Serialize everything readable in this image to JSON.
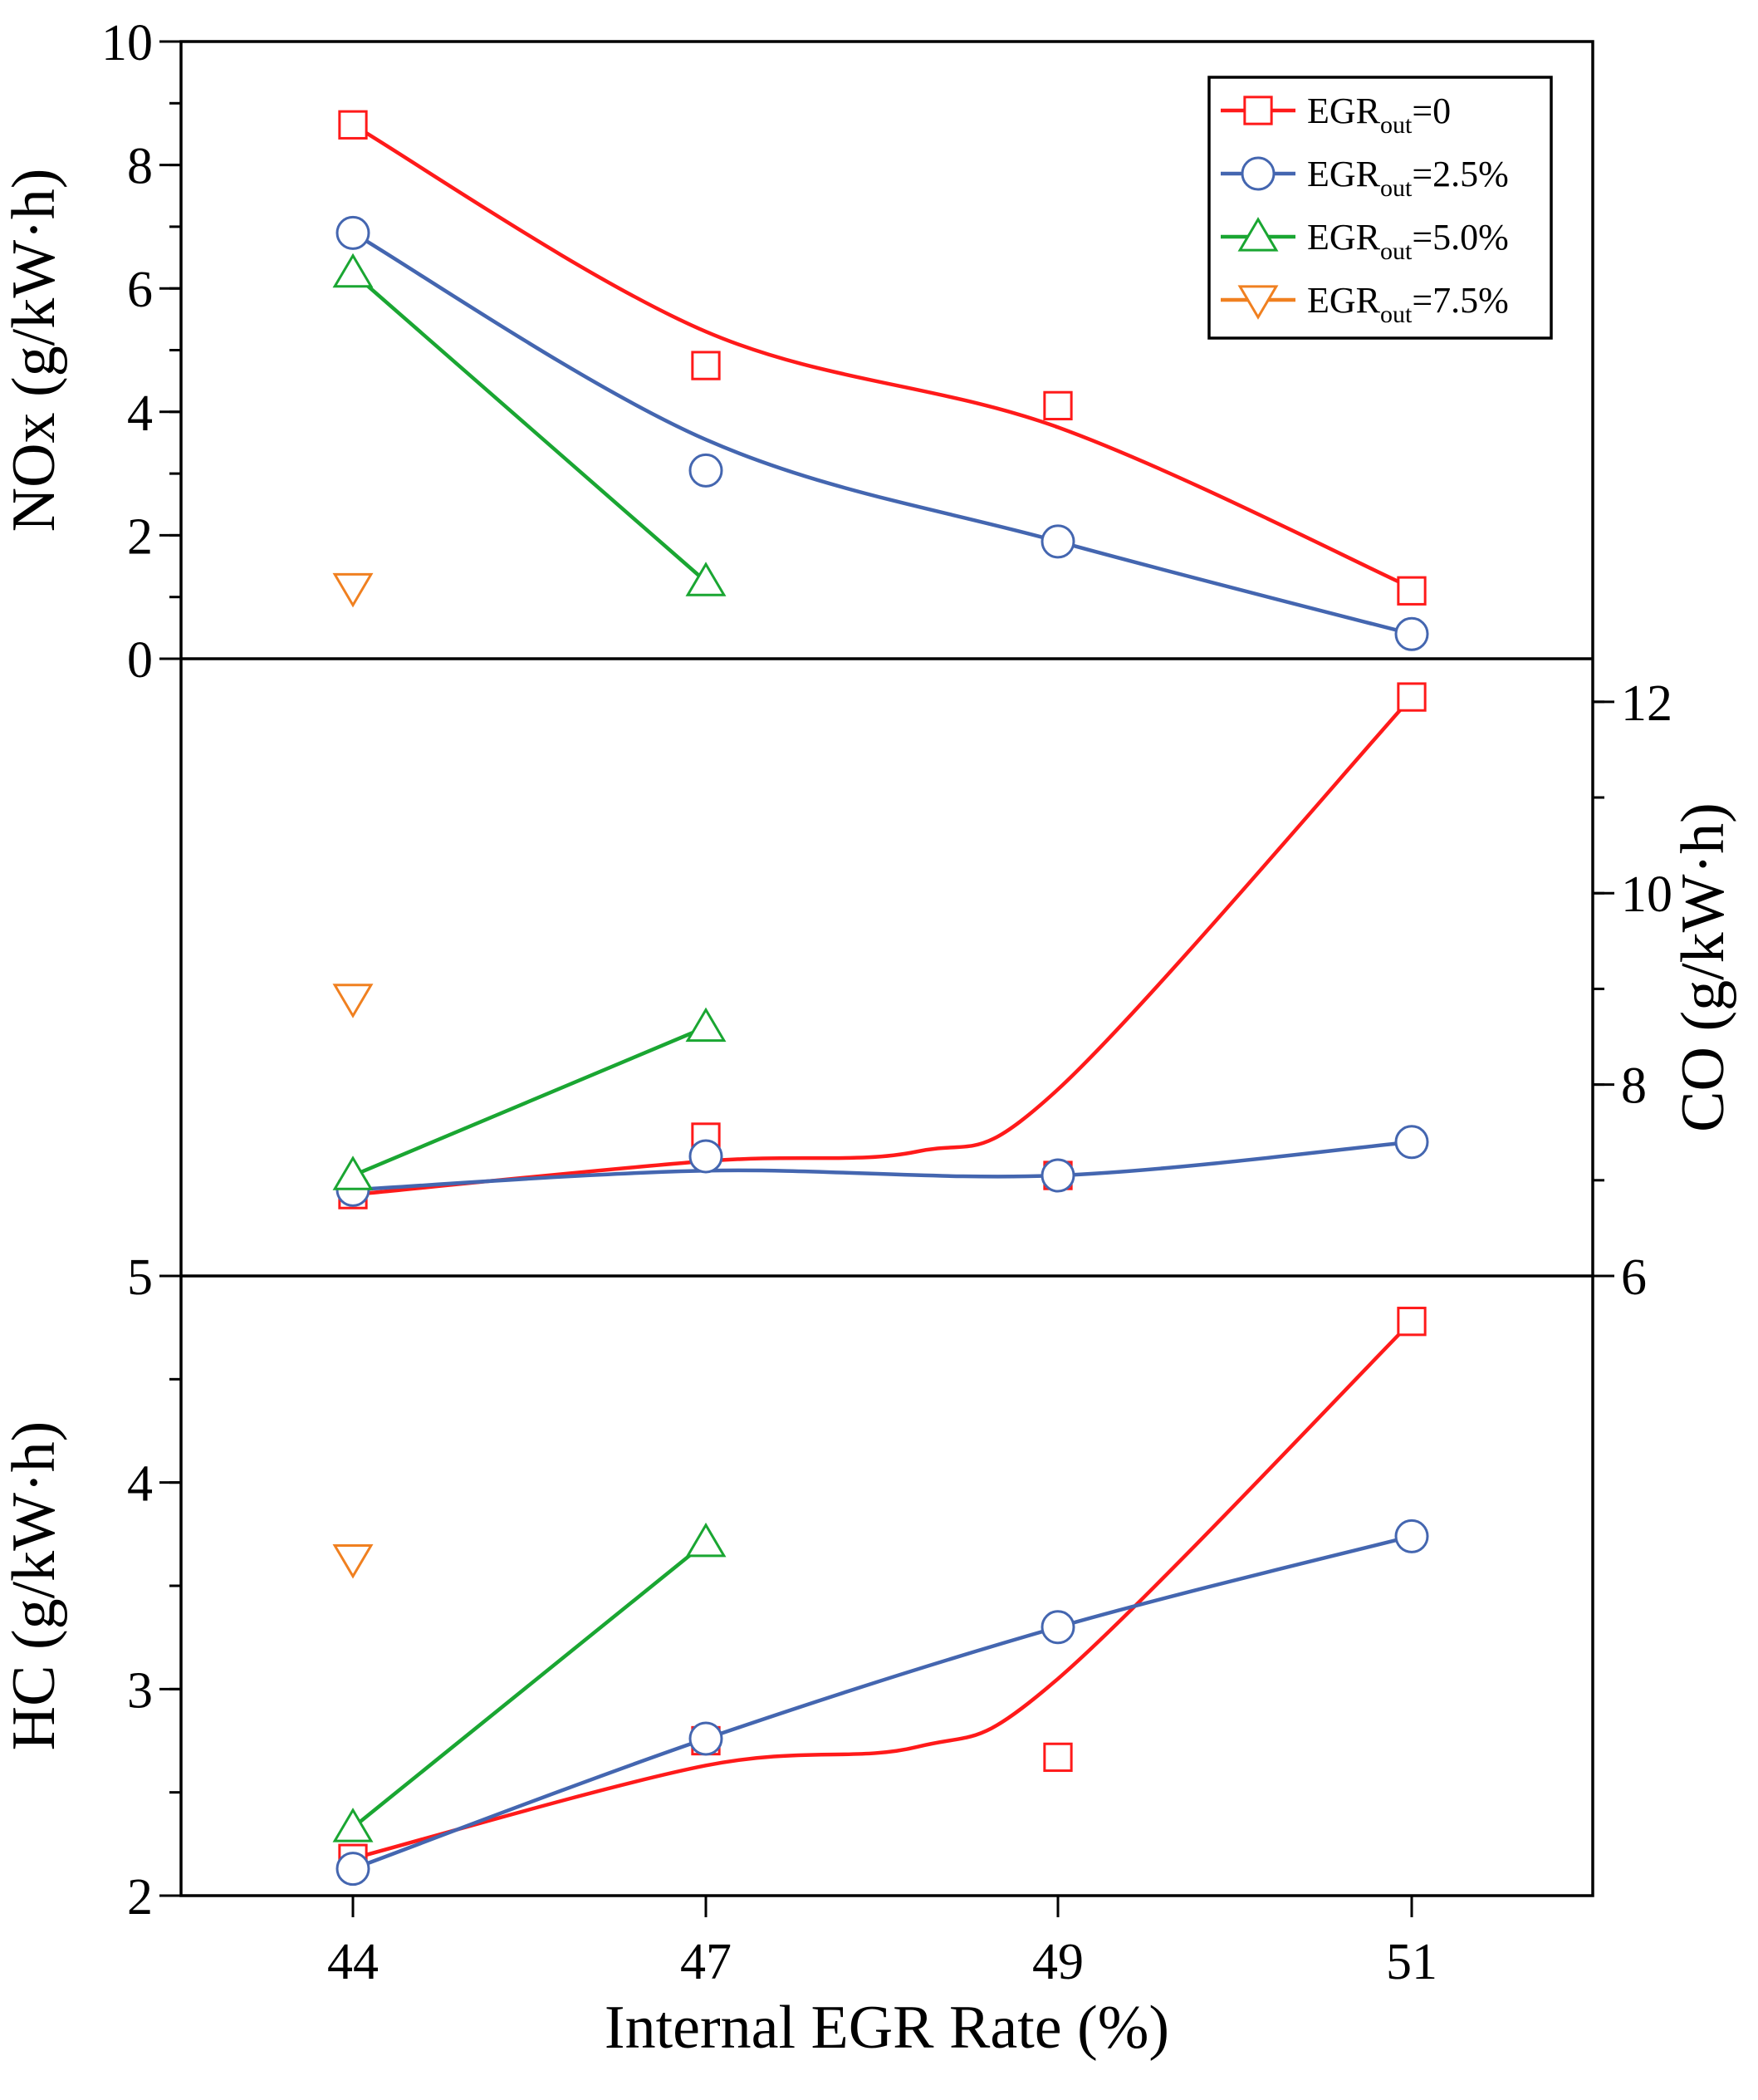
{
  "chart_data": [
    {
      "panel": "NOx",
      "type": "line",
      "title": "",
      "ylabel": "NOx (g/kW·h)",
      "ylim": [
        0,
        10
      ],
      "yticks": [
        "0",
        "2",
        "4",
        "6",
        "8",
        "10"
      ],
      "y_axis_side": "left",
      "series": [
        {
          "name": "EGRout=0",
          "points": [
            [
              44,
              8.65
            ],
            [
              47,
              4.75
            ],
            [
              49,
              4.1
            ],
            [
              51,
              1.1
            ]
          ]
        },
        {
          "name": "EGRout=2.5%",
          "points": [
            [
              44,
              6.9
            ],
            [
              47,
              3.05
            ],
            [
              49,
              1.9
            ],
            [
              51,
              0.4
            ]
          ]
        },
        {
          "name": "EGRout=5.0%",
          "points": [
            [
              44,
              6.25
            ],
            [
              47,
              1.25
            ]
          ]
        },
        {
          "name": "EGRout=7.5%",
          "points": [
            [
              44,
              1.15
            ]
          ]
        }
      ]
    },
    {
      "panel": "CO",
      "type": "line",
      "title": "",
      "ylabel": "CO (g/kW·h)",
      "ylim": [
        6,
        12.45
      ],
      "yticks": [
        "6",
        "8",
        "10",
        "12"
      ],
      "y_axis_side": "right",
      "series": [
        {
          "name": "EGRout=0",
          "points": [
            [
              44,
              6.85
            ],
            [
              47,
              7.45
            ],
            [
              49,
              7.05
            ],
            [
              51,
              12.05
            ]
          ]
        },
        {
          "name": "EGRout=2.5%",
          "points": [
            [
              44,
              6.9
            ],
            [
              47,
              7.25
            ],
            [
              49,
              7.05
            ],
            [
              51,
              7.4
            ]
          ]
        },
        {
          "name": "EGRout=5.0%",
          "points": [
            [
              44,
              7.05
            ],
            [
              47,
              8.6
            ]
          ]
        },
        {
          "name": "EGRout=7.5%",
          "points": [
            [
              44,
              8.9
            ]
          ]
        }
      ]
    },
    {
      "panel": "HC",
      "type": "line",
      "title": "",
      "ylabel": "HC (g/kW·h)",
      "xlabel": "Internal EGR Rate (%)",
      "ylim": [
        2,
        5
      ],
      "yticks": [
        "2",
        "3",
        "4",
        "5"
      ],
      "y_axis_side": "left",
      "categories": [
        "44",
        "47",
        "49",
        "51"
      ],
      "series": [
        {
          "name": "EGRout=0",
          "points": [
            [
              44,
              2.18
            ],
            [
              47,
              2.75
            ],
            [
              49,
              2.67
            ],
            [
              51,
              4.78
            ]
          ]
        },
        {
          "name": "EGRout=2.5%",
          "points": [
            [
              44,
              2.13
            ],
            [
              47,
              2.76
            ],
            [
              49,
              3.3
            ],
            [
              51,
              3.74
            ]
          ]
        },
        {
          "name": "EGRout=5.0%",
          "points": [
            [
              44,
              2.33
            ],
            [
              47,
              3.71
            ]
          ]
        },
        {
          "name": "EGRout=7.5%",
          "points": [
            [
              44,
              3.63
            ]
          ]
        }
      ]
    }
  ],
  "legend": [
    {
      "base": "EGR",
      "sub": "out",
      "suffix": "=0",
      "color": "#ff1a1a",
      "marker": "square"
    },
    {
      "base": "EGR",
      "sub": "out",
      "suffix": "=2.5%",
      "color": "#4466b0",
      "marker": "circle"
    },
    {
      "base": "EGR",
      "sub": "out",
      "suffix": "=5.0%",
      "color": "#1aa632",
      "marker": "triangle-up"
    },
    {
      "base": "EGR",
      "sub": "out",
      "suffix": "=7.5%",
      "color": "#f08020",
      "marker": "triangle-down"
    }
  ],
  "legend_placement": "top-right"
}
